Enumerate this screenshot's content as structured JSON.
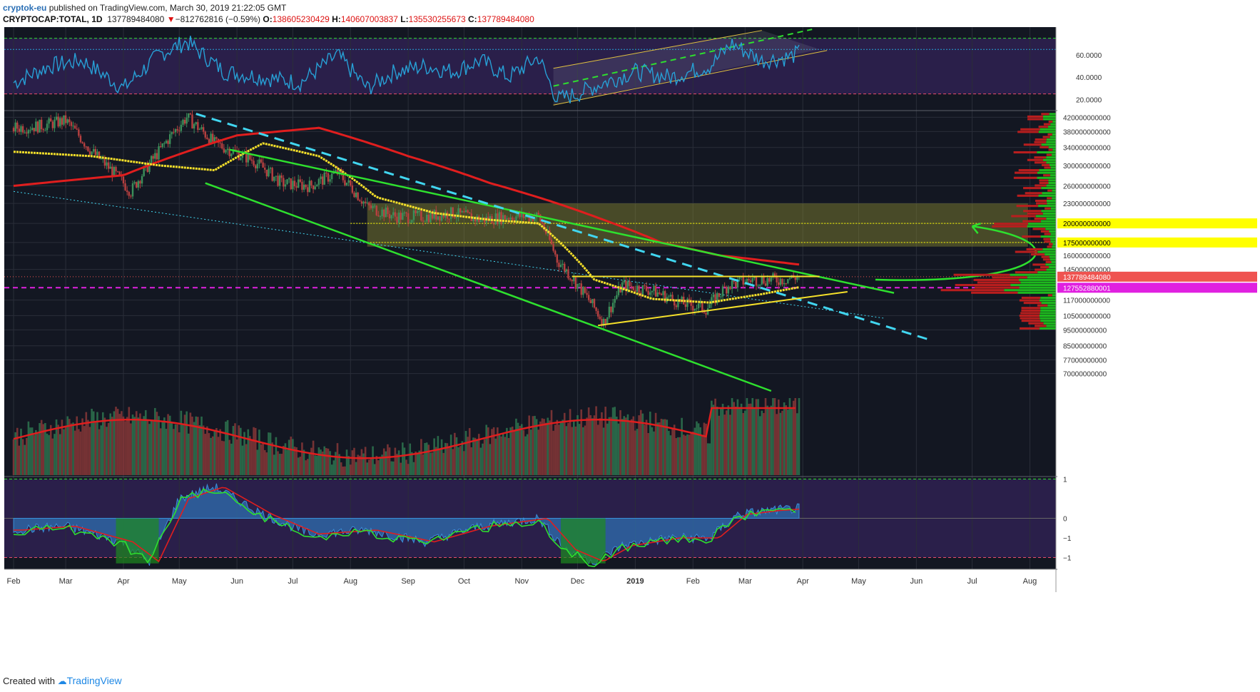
{
  "header": {
    "publisher": "cryptok-eu",
    "published_text": "published on TradingView.com, March 30, 2019 21:22:05 GMT",
    "symbol": "CRYPTOCAP:TOTAL, 1D",
    "last": "137789484080",
    "change": "−812762816 (−0.59%)",
    "open_label": "O:",
    "open": "138605230429",
    "high_label": "H:",
    "high": "140607003837",
    "low_label": "L:",
    "low": "135530255673",
    "close_label": "C:",
    "close": "137789484080"
  },
  "footer": {
    "created_with": "Created with",
    "brand": "TradingView"
  },
  "colors": {
    "background": "#131722",
    "panel_purple": "#2a1f4a",
    "rsi_line": "#27a0d6",
    "ma_red": "#e01e1e",
    "ma_yellow": "#f5e02a",
    "trend_green": "#2ee02e",
    "dashed_cyan": "#41d6f0",
    "price_badge_red": "#ef5350",
    "badge_magenta": "#e020e0",
    "badge_yellow": "#ffff00"
  },
  "chart_data": {
    "type": "candlestick",
    "time_axis": {
      "labels": [
        "Feb",
        "Mar",
        "Apr",
        "May",
        "Jun",
        "Jul",
        "Aug",
        "Sep",
        "Oct",
        "Nov",
        "Dec",
        "2019",
        "Feb",
        "Mar",
        "Apr",
        "May",
        "Jun",
        "Jul",
        "Aug"
      ]
    },
    "price_pane": {
      "scale": "log",
      "tick_labels": [
        "420000000000",
        "380000000000",
        "340000000000",
        "300000000000",
        "260000000000",
        "230000000000",
        "200000000000",
        "175000000000",
        "160000000000",
        "145000000000",
        "137789484080",
        "127552880001",
        "117000000000",
        "105000000000",
        "95000000000",
        "85000000000",
        "77000000000",
        "70000000000"
      ],
      "badges": [
        {
          "label": "200000000000",
          "color": "#ffff00"
        },
        {
          "label": "175000000000",
          "color": "#ffff00"
        },
        {
          "label": "137789484080",
          "color": "#ef5350"
        },
        {
          "label": "127552880001",
          "color": "#e020e0"
        }
      ],
      "close_series": {
        "x": [
          "2018-02-01",
          "2018-02-15",
          "2018-03-01",
          "2018-03-15",
          "2018-04-05",
          "2018-04-20",
          "2018-05-05",
          "2018-05-20",
          "2018-06-10",
          "2018-06-25",
          "2018-07-10",
          "2018-07-25",
          "2018-08-10",
          "2018-08-25",
          "2018-09-10",
          "2018-09-25",
          "2018-10-10",
          "2018-10-25",
          "2018-11-10",
          "2018-11-20",
          "2018-12-01",
          "2018-12-15",
          "2018-12-25",
          "2019-01-10",
          "2019-01-25",
          "2019-02-08",
          "2019-02-20",
          "2019-03-05",
          "2019-03-20",
          "2019-03-30"
        ],
        "y": [
          390,
          395,
          410,
          330,
          250,
          330,
          420,
          350,
          310,
          265,
          260,
          285,
          225,
          210,
          210,
          215,
          205,
          210,
          210,
          155,
          130,
          100,
          130,
          125,
          115,
          110,
          130,
          135,
          135,
          137.8
        ]
      },
      "ma_long_red": {
        "x": [
          "2018-02-01",
          "2018-04-01",
          "2018-06-01",
          "2018-07-15",
          "2018-09-01",
          "2018-10-15",
          "2018-11-15",
          "2018-12-15",
          "2019-01-15",
          "2019-02-15",
          "2019-03-30"
        ],
        "y": [
          260,
          280,
          370,
          390,
          320,
          265,
          235,
          205,
          175,
          160,
          150
        ]
      },
      "ma_yellow": {
        "x": [
          "2018-02-01",
          "2018-03-15",
          "2018-04-20",
          "2018-05-20",
          "2018-06-15",
          "2018-07-15",
          "2018-08-15",
          "2018-09-15",
          "2018-10-15",
          "2018-11-10",
          "2018-12-10",
          "2019-01-10",
          "2019-02-10",
          "2019-03-10",
          "2019-03-30"
        ],
        "y": [
          330,
          320,
          300,
          290,
          350,
          320,
          240,
          215,
          205,
          200,
          135,
          118,
          115,
          122,
          128
        ]
      },
      "horizontal_levels": [
        200,
        175,
        137.8,
        127.6
      ],
      "range_box": {
        "from": "2018-08-10",
        "to": "2019-07-31",
        "low": 170,
        "high": 230
      }
    },
    "rsi_pane": {
      "tick_labels": [
        "60.0000",
        "40.0000",
        "20.0000"
      ],
      "levels": [
        75,
        65,
        25
      ],
      "ylim": [
        10,
        85
      ],
      "series": {
        "x": [
          "2018-02-01",
          "2018-02-20",
          "2018-03-10",
          "2018-04-01",
          "2018-04-20",
          "2018-05-05",
          "2018-05-25",
          "2018-06-15",
          "2018-07-05",
          "2018-07-25",
          "2018-08-10",
          "2018-08-25",
          "2018-09-10",
          "2018-09-25",
          "2018-10-10",
          "2018-10-25",
          "2018-11-10",
          "2018-11-20",
          "2018-12-01",
          "2018-12-15",
          "2019-01-01",
          "2019-01-20",
          "2019-02-10",
          "2019-02-22",
          "2019-03-10",
          "2019-03-25",
          "2019-03-30"
        ],
        "y": [
          35,
          50,
          55,
          30,
          60,
          72,
          45,
          40,
          35,
          60,
          30,
          45,
          50,
          45,
          55,
          40,
          58,
          20,
          25,
          35,
          45,
          40,
          50,
          70,
          55,
          58,
          62
        ]
      }
    },
    "volume_pane": {
      "tick_labels": [],
      "note": ""
    },
    "oscillator_pane": {
      "tick_labels": [
        "1",
        "0",
        "−1",
        "−1"
      ],
      "levels": [
        1,
        0,
        -1
      ],
      "ylim": [
        -1.3,
        1.1
      ],
      "series": {
        "x": [
          "2018-02-01",
          "2018-03-01",
          "2018-04-01",
          "2018-04-15",
          "2018-05-01",
          "2018-05-20",
          "2018-06-15",
          "2018-07-10",
          "2018-08-10",
          "2018-09-10",
          "2018-10-10",
          "2018-11-10",
          "2018-11-25",
          "2018-12-10",
          "2018-12-25",
          "2019-01-20",
          "2019-02-10",
          "2019-02-25",
          "2019-03-15",
          "2019-03-30"
        ],
        "y": [
          -0.3,
          -0.2,
          -0.6,
          -1.1,
          0.5,
          0.8,
          0.1,
          -0.4,
          -0.3,
          -0.6,
          -0.2,
          0.0,
          -0.8,
          -1.1,
          -0.7,
          -0.5,
          -0.5,
          0.1,
          0.2,
          0.25
        ]
      }
    }
  }
}
